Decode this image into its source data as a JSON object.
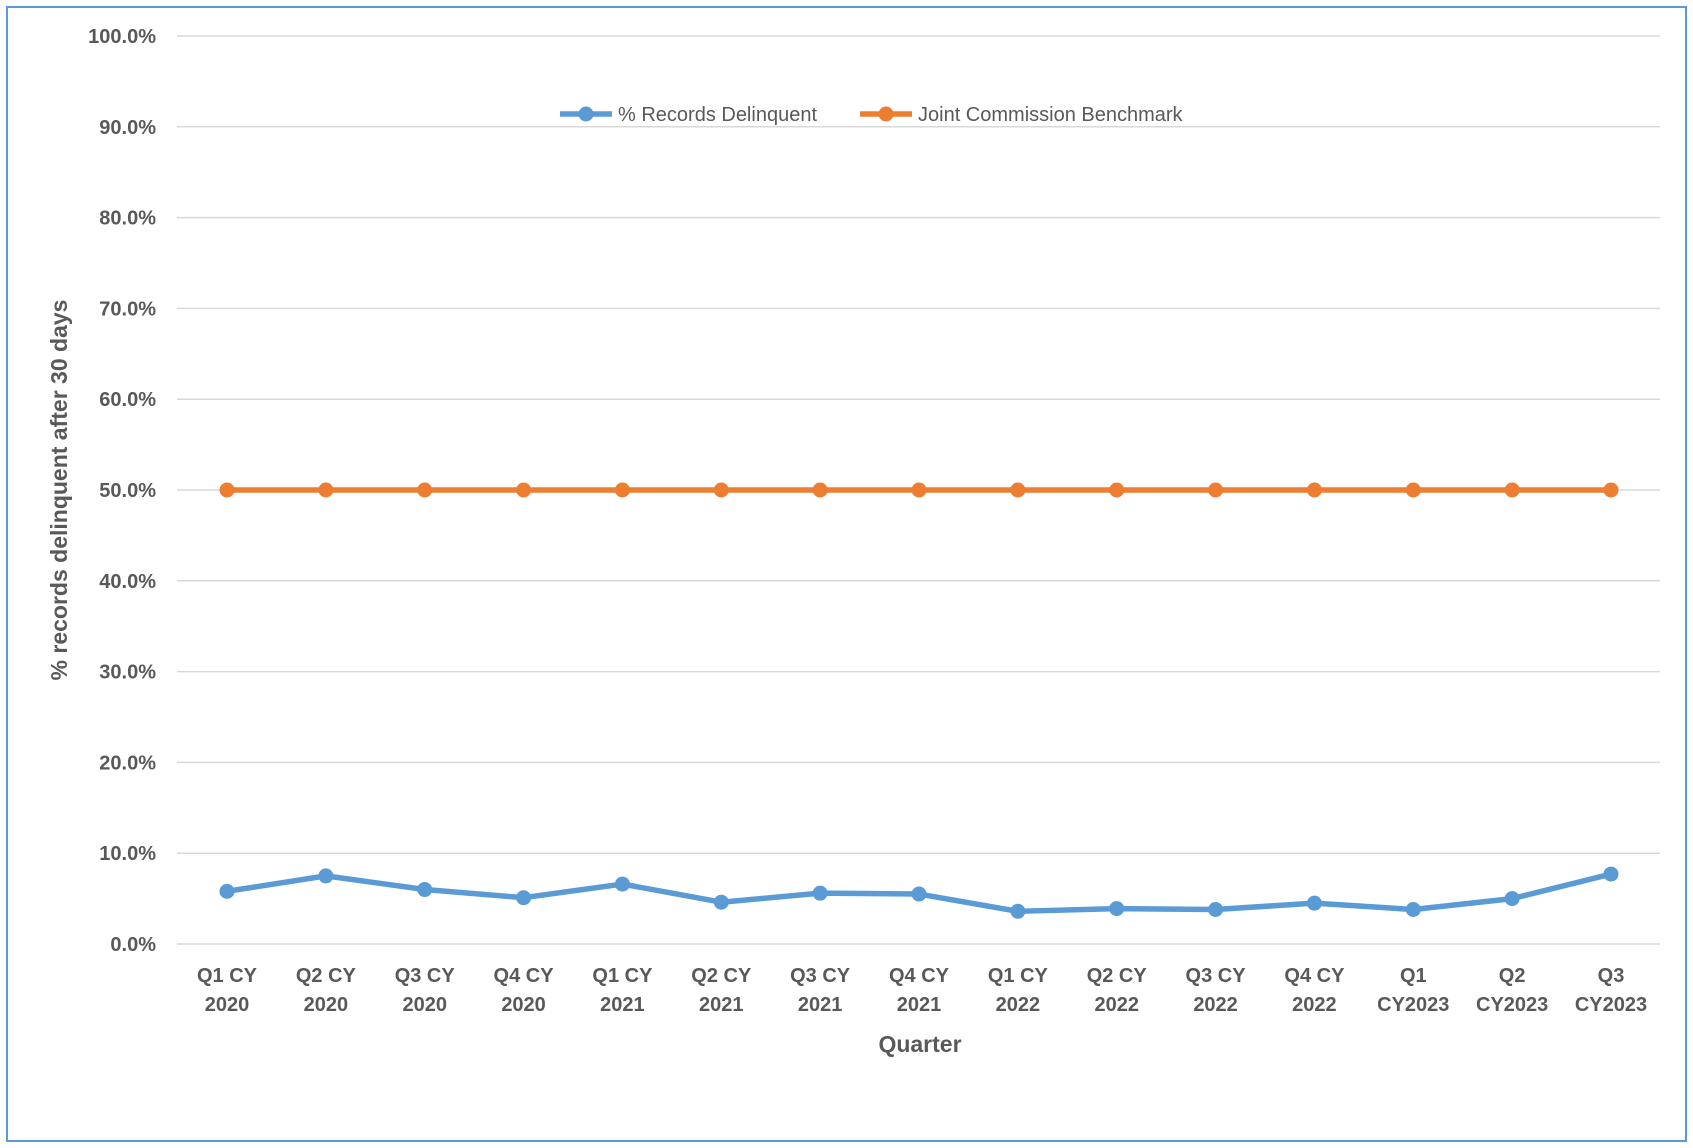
{
  "chart_data": {
    "type": "line",
    "title": "",
    "xlabel": "Quarter",
    "ylabel": "% records delinquent after 30 days",
    "categories": [
      [
        "Q1 CY",
        "2020"
      ],
      [
        "Q2 CY",
        "2020"
      ],
      [
        "Q3 CY",
        "2020"
      ],
      [
        "Q4 CY",
        "2020"
      ],
      [
        "Q1 CY",
        "2021"
      ],
      [
        "Q2 CY",
        "2021"
      ],
      [
        "Q3 CY",
        "2021"
      ],
      [
        "Q4 CY",
        "2021"
      ],
      [
        "Q1 CY",
        "2022"
      ],
      [
        "Q2 CY",
        "2022"
      ],
      [
        "Q3 CY",
        "2022"
      ],
      [
        "Q4 CY",
        "2022"
      ],
      [
        "Q1",
        "CY2023"
      ],
      [
        "Q2",
        "CY2023"
      ],
      [
        "Q3",
        "CY2023"
      ]
    ],
    "ylim": [
      0,
      100
    ],
    "yticks": [
      "0.0%",
      "10.0%",
      "20.0%",
      "30.0%",
      "40.0%",
      "50.0%",
      "60.0%",
      "70.0%",
      "80.0%",
      "90.0%",
      "100.0%"
    ],
    "grid": true,
    "legend_position": "top-center",
    "series": [
      {
        "name": "% Records Delinquent",
        "color": "#5b9bd5",
        "values": [
          5.8,
          7.5,
          6.0,
          5.1,
          6.6,
          4.6,
          5.6,
          5.5,
          3.6,
          3.9,
          3.8,
          4.5,
          3.8,
          5.0,
          7.7
        ]
      },
      {
        "name": "Joint Commission Benchmark",
        "color": "#ed7d31",
        "values": [
          50,
          50,
          50,
          50,
          50,
          50,
          50,
          50,
          50,
          50,
          50,
          50,
          50,
          50,
          50
        ]
      }
    ]
  }
}
